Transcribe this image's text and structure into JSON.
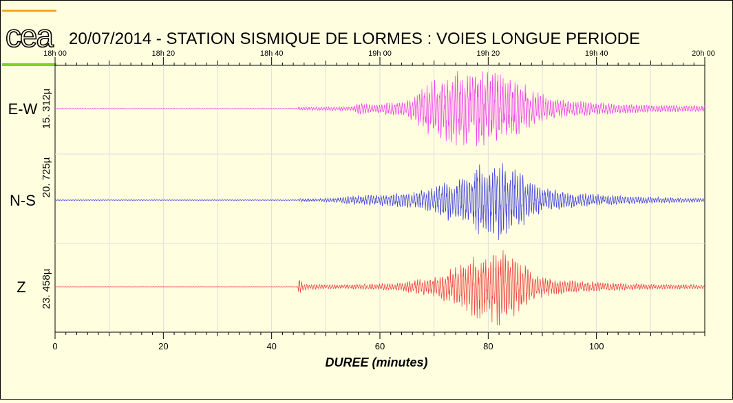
{
  "chart_data": {
    "type": "line",
    "title": "20/07/2014  -  STATION SISMIQUE DE LORMES : VOIES LONGUE PERIODE",
    "xlabel": "DUREE (minutes)",
    "xlim": [
      0,
      120
    ],
    "x_ticks": [
      0,
      20,
      40,
      60,
      80,
      100
    ],
    "top_axis_ticks": [
      {
        "minute": 0,
        "label": "18h 00"
      },
      {
        "minute": 20,
        "label": "18h 20"
      },
      {
        "minute": 40,
        "label": "18h 40"
      },
      {
        "minute": 60,
        "label": "19h 00"
      },
      {
        "minute": 80,
        "label": "19h 20"
      },
      {
        "minute": 100,
        "label": "19h 40"
      },
      {
        "minute": 120,
        "label": "20h 00"
      }
    ],
    "grid": true,
    "series": [
      {
        "name": "E-W",
        "scale_label": "15. 312µ",
        "color": "#ee44ee",
        "p_arrival": 45.0,
        "envelope": [
          [
            0,
            0.01
          ],
          [
            44.8,
            0.01
          ],
          [
            45.0,
            0.04
          ],
          [
            55,
            0.05
          ],
          [
            56,
            0.15
          ],
          [
            58,
            0.12
          ],
          [
            62,
            0.15
          ],
          [
            64,
            0.2
          ],
          [
            66,
            0.28
          ],
          [
            68,
            0.55
          ],
          [
            70,
            0.7
          ],
          [
            72,
            0.75
          ],
          [
            74,
            0.9
          ],
          [
            75,
            1.0
          ],
          [
            77,
            0.85
          ],
          [
            80,
            1.0
          ],
          [
            82,
            0.85
          ],
          [
            84,
            0.75
          ],
          [
            86,
            0.7
          ],
          [
            88,
            0.45
          ],
          [
            91,
            0.3
          ],
          [
            95,
            0.2
          ],
          [
            100,
            0.16
          ],
          [
            105,
            0.12
          ],
          [
            110,
            0.1
          ],
          [
            115,
            0.08
          ],
          [
            120,
            0.07
          ]
        ],
        "samples": []
      },
      {
        "name": "N-S",
        "scale_label": "20. 725µ",
        "color": "#4444dd",
        "p_arrival": 45.0,
        "envelope": [
          [
            0,
            0.01
          ],
          [
            44.8,
            0.01
          ],
          [
            45.0,
            0.04
          ],
          [
            48,
            0.03
          ],
          [
            52,
            0.06
          ],
          [
            56,
            0.12
          ],
          [
            60,
            0.14
          ],
          [
            64,
            0.18
          ],
          [
            67,
            0.25
          ],
          [
            70,
            0.3
          ],
          [
            73,
            0.55
          ],
          [
            76,
            0.6
          ],
          [
            78,
            0.85
          ],
          [
            80,
            0.9
          ],
          [
            82,
            1.0
          ],
          [
            84,
            0.85
          ],
          [
            86,
            0.7
          ],
          [
            88,
            0.4
          ],
          [
            92,
            0.25
          ],
          [
            96,
            0.18
          ],
          [
            100,
            0.15
          ],
          [
            105,
            0.1
          ],
          [
            110,
            0.08
          ],
          [
            115,
            0.06
          ],
          [
            120,
            0.05
          ]
        ],
        "samples": []
      },
      {
        "name": "Z",
        "scale_label": "23. 458µ",
        "color": "#ee4444",
        "p_arrival": 45.0,
        "envelope": [
          [
            0,
            0.005
          ],
          [
            44.8,
            0.005
          ],
          [
            45.0,
            0.22
          ],
          [
            46,
            0.08
          ],
          [
            50,
            0.05
          ],
          [
            56,
            0.07
          ],
          [
            60,
            0.08
          ],
          [
            64,
            0.1
          ],
          [
            67,
            0.2
          ],
          [
            70,
            0.25
          ],
          [
            73,
            0.45
          ],
          [
            76,
            0.65
          ],
          [
            78,
            0.8
          ],
          [
            80,
            0.8
          ],
          [
            82,
            1.0
          ],
          [
            84,
            0.8
          ],
          [
            86,
            0.65
          ],
          [
            88,
            0.35
          ],
          [
            92,
            0.2
          ],
          [
            96,
            0.15
          ],
          [
            100,
            0.12
          ],
          [
            105,
            0.09
          ],
          [
            110,
            0.07
          ],
          [
            115,
            0.06
          ],
          [
            120,
            0.05
          ]
        ],
        "samples": []
      }
    ]
  },
  "colors": {
    "background": "#ffffe0",
    "logo_top_bar": "#f5a623",
    "logo_bottom_bar": "#7ed321",
    "logo_text": "#000000"
  },
  "logo": {
    "text": "cea"
  }
}
